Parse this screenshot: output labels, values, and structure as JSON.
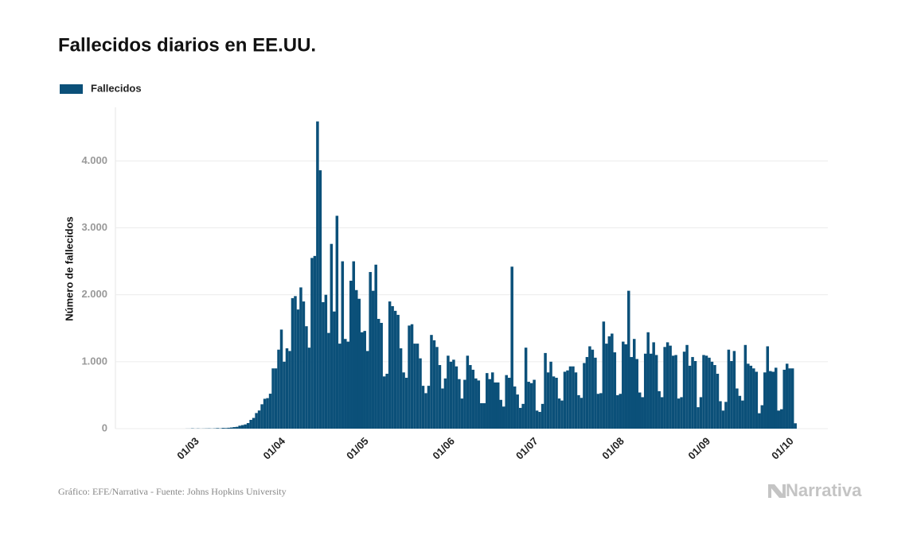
{
  "chart_data": {
    "type": "bar",
    "title": "Fallecidos diarios en EE.UU.",
    "y_label": "Número de fallecidos",
    "source": "Gráfico: EFE/Narrativa - Fuente: Johns Hopkins University",
    "logo": "Narrativa",
    "ylim": [
      0,
      4800
    ],
    "yticks": [
      0,
      {
        "value": 1000,
        "label": "1.000"
      },
      {
        "value": 2000,
        "label": "2.000"
      },
      {
        "value": 3000,
        "label": "3.000"
      },
      {
        "value": 4000,
        "label": "4.000"
      }
    ],
    "grid": true,
    "categories": [
      null,
      null,
      null,
      null,
      null,
      null,
      null,
      null,
      null,
      null,
      null,
      null,
      null,
      null,
      null,
      "01/03",
      null,
      null,
      null,
      null,
      null,
      null,
      null,
      null,
      null,
      null,
      null,
      null,
      null,
      null,
      null,
      null,
      null,
      null,
      null,
      null,
      null,
      null,
      null,
      null,
      null,
      null,
      null,
      null,
      null,
      null,
      "01/04",
      null,
      null,
      null,
      null,
      null,
      null,
      null,
      null,
      null,
      null,
      null,
      null,
      null,
      null,
      null,
      null,
      null,
      null,
      null,
      null,
      null,
      null,
      null,
      null,
      null,
      null,
      null,
      null,
      null,
      "01/05",
      null,
      null,
      null,
      null,
      null,
      null,
      null,
      null,
      null,
      null,
      null,
      null,
      null,
      null,
      null,
      null,
      null,
      null,
      null,
      null,
      null,
      null,
      null,
      null,
      null,
      null,
      null,
      null,
      null,
      null,
      "01/06",
      null,
      null,
      null,
      null,
      null,
      null,
      null,
      null,
      null,
      null,
      null,
      null,
      null,
      null,
      null,
      null,
      null,
      null,
      null,
      null,
      null,
      null,
      null,
      null,
      null,
      null,
      null,
      null,
      null,
      "01/07",
      null,
      null,
      null,
      null,
      null,
      null,
      null,
      null,
      null,
      null,
      null,
      null,
      null,
      null,
      null,
      null,
      null,
      null,
      null,
      null,
      null,
      null,
      null,
      null,
      null,
      null,
      null,
      null,
      null,
      null,
      "01/08",
      null,
      null,
      null,
      null,
      null,
      null,
      null,
      null,
      null,
      null,
      null,
      null,
      null,
      null,
      null,
      null,
      null,
      null,
      null,
      null,
      null,
      null,
      null,
      null,
      null,
      null,
      null,
      null,
      null,
      null,
      "01/09",
      null,
      null,
      null,
      null,
      null,
      null,
      null,
      null,
      null,
      null,
      null,
      null,
      null,
      null,
      null,
      null,
      null,
      null,
      null,
      null,
      null,
      null,
      null,
      null,
      null,
      null,
      null,
      null,
      null,
      "01/10",
      null,
      null,
      null,
      null
    ],
    "series": [
      {
        "name": "Fallecidos",
        "color": "#0b5079",
        "values": [
          0,
          0,
          0,
          0,
          0,
          0,
          0,
          0,
          0,
          0,
          0,
          0,
          0,
          0,
          1,
          1,
          4,
          1,
          3,
          1,
          2,
          3,
          4,
          2,
          4,
          8,
          4,
          11,
          9,
          13,
          17,
          23,
          27,
          44,
          53,
          63,
          83,
          131,
          160,
          233,
          271,
          364,
          446,
          456,
          522,
          900,
          900,
          1180,
          1480,
          1000,
          1200,
          1160,
          1950,
          1980,
          1780,
          2110,
          1900,
          1530,
          1210,
          2550,
          2580,
          4590,
          3860,
          1890,
          2000,
          1430,
          2760,
          1750,
          3180,
          1270,
          2500,
          1340,
          1300,
          2210,
          2500,
          2070,
          1940,
          1440,
          1460,
          1160,
          2340,
          2060,
          2450,
          1640,
          1580,
          780,
          820,
          1900,
          1830,
          1760,
          1700,
          1200,
          840,
          760,
          1540,
          1560,
          1270,
          1270,
          1050,
          640,
          530,
          640,
          1400,
          1320,
          1220,
          950,
          600,
          750,
          1090,
          1000,
          1030,
          930,
          740,
          450,
          730,
          1090,
          950,
          880,
          750,
          720,
          380,
          380,
          830,
          740,
          840,
          690,
          690,
          430,
          330,
          800,
          760,
          2420,
          630,
          510,
          310,
          370,
          1210,
          700,
          680,
          730,
          270,
          250,
          370,
          1130,
          840,
          1000,
          780,
          760,
          450,
          420,
          850,
          870,
          930,
          930,
          840,
          500,
          460,
          980,
          1070,
          1230,
          1180,
          1060,
          520,
          530,
          1600,
          1270,
          1380,
          1420,
          1140,
          500,
          520,
          1300,
          1260,
          2060,
          1070,
          1340,
          1040,
          540,
          470,
          1120,
          1440,
          1120,
          1290,
          1100,
          560,
          470,
          1220,
          1290,
          1240,
          1090,
          1100,
          450,
          470,
          1150,
          1250,
          940,
          1070,
          1010,
          320,
          470,
          1100,
          1090,
          1060,
          1000,
          950,
          820,
          410,
          270,
          400,
          1180,
          1010,
          1160,
          600,
          490,
          420,
          1250,
          970,
          940,
          900,
          850,
          230,
          350,
          840,
          1230,
          860,
          850,
          910,
          270,
          290,
          880,
          970,
          900,
          900,
          80
        ]
      }
    ]
  }
}
